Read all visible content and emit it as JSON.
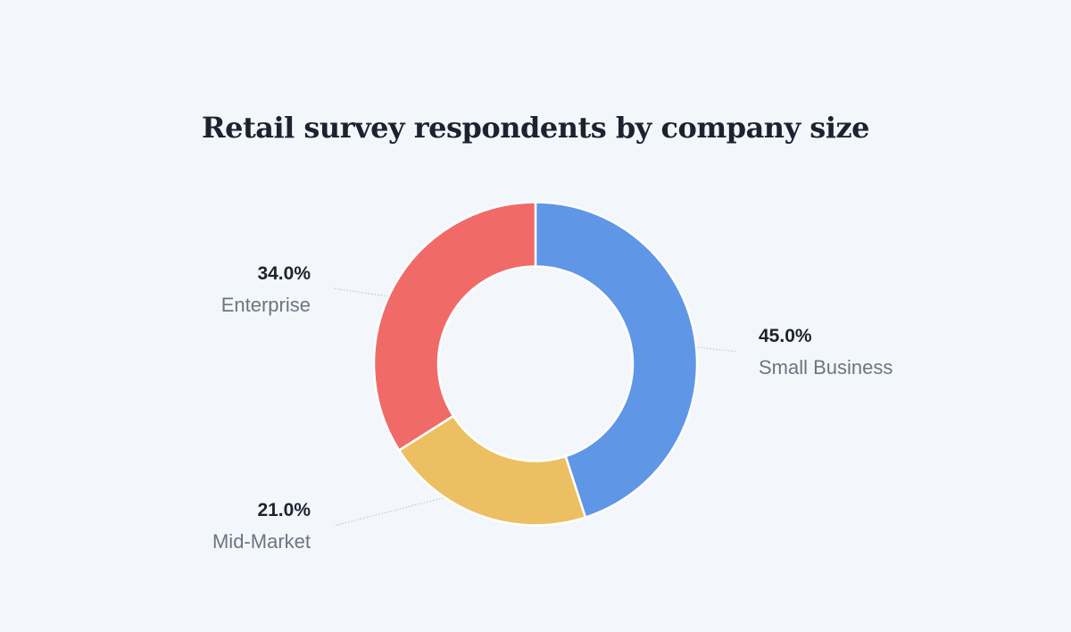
{
  "chart_data": {
    "type": "pie",
    "variant": "donut",
    "title": "Retail survey respondents by company size",
    "categories": [
      "Small Business",
      "Mid-Market",
      "Enterprise"
    ],
    "values": [
      45.0,
      21.0,
      34.0
    ],
    "value_labels": [
      "45.0%",
      "21.0%",
      "34.0%"
    ],
    "colors": [
      "#6096e6",
      "#ecc062",
      "#f06b68"
    ],
    "start_angle_deg": 0,
    "direction": "clockwise"
  }
}
